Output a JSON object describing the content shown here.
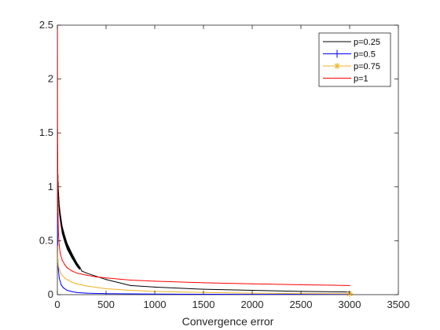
{
  "chart_data": {
    "type": "line",
    "title": "",
    "xlabel": "Convergence error",
    "ylabel": "",
    "xlim": [
      0,
      3500
    ],
    "ylim": [
      0,
      2.5
    ],
    "x_ticks": [
      0,
      500,
      1000,
      1500,
      2000,
      2500,
      3000,
      3500
    ],
    "y_ticks": [
      0,
      0.5,
      1,
      1.5,
      2,
      2.5
    ],
    "x_tick_labels": [
      "0",
      "500",
      "1000",
      "1500",
      "2000",
      "2500",
      "3000",
      "3500"
    ],
    "y_tick_labels": [
      "0",
      "0.5",
      "1",
      "1.5",
      "2",
      "2.5"
    ],
    "grid": false,
    "legend_position": "top-right",
    "series": [
      {
        "name": "p=0.25",
        "color": "#000000",
        "marker": "none",
        "x": [
          1,
          3,
          5,
          10,
          20,
          30,
          50,
          75,
          100,
          150,
          200,
          250,
          300,
          400,
          500,
          750,
          1000,
          1500,
          2000,
          2500,
          3000
        ],
        "y": [
          1.5,
          1.3,
          1.1,
          0.95,
          0.8,
          0.72,
          0.6,
          0.52,
          0.45,
          0.36,
          0.28,
          0.22,
          0.2,
          0.17,
          0.14,
          0.085,
          0.07,
          0.05,
          0.04,
          0.03,
          0.025
        ],
        "oscillation": {
          "from_x": 0,
          "to_x": 230,
          "amplitude": 0.08
        }
      },
      {
        "name": "p=0.5",
        "color": "#0000ff",
        "marker": "plus",
        "x": [
          1,
          3,
          5,
          10,
          20,
          40,
          60,
          100,
          150,
          200,
          300,
          500,
          1000,
          2000,
          3000
        ],
        "y": [
          0.75,
          0.45,
          0.33,
          0.24,
          0.15,
          0.09,
          0.065,
          0.04,
          0.028,
          0.02,
          0.014,
          0.009,
          0.005,
          0.003,
          0.002
        ]
      },
      {
        "name": "p=0.75",
        "color": "#edb120",
        "marker": "asterisk",
        "x": [
          1,
          3,
          5,
          10,
          20,
          40,
          70,
          100,
          150,
          200,
          300,
          500,
          750,
          1000,
          1500,
          2000,
          2500,
          3000
        ],
        "y": [
          0.45,
          0.36,
          0.31,
          0.27,
          0.23,
          0.19,
          0.16,
          0.14,
          0.115,
          0.1,
          0.08,
          0.055,
          0.04,
          0.03,
          0.02,
          0.014,
          0.01,
          0.008
        ]
      },
      {
        "name": "p=1",
        "color": "#ff0000",
        "marker": "none",
        "x": [
          1,
          2,
          3,
          5,
          8,
          12,
          20,
          30,
          50,
          75,
          100,
          150,
          200,
          300,
          400,
          500,
          750,
          1000,
          1500,
          2000,
          2500,
          3000
        ],
        "y": [
          2.5,
          1.6,
          1.2,
          0.9,
          0.7,
          0.55,
          0.45,
          0.38,
          0.32,
          0.28,
          0.25,
          0.22,
          0.2,
          0.18,
          0.165,
          0.155,
          0.135,
          0.125,
          0.11,
          0.1,
          0.092,
          0.085
        ]
      }
    ]
  }
}
